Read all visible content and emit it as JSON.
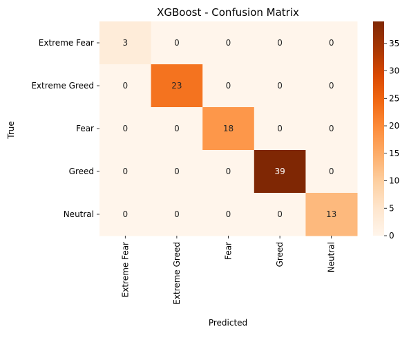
{
  "chart_data": {
    "type": "heatmap",
    "title": "XGBoost - Confusion Matrix",
    "xlabel": "Predicted",
    "ylabel": "True",
    "x_categories": [
      "Extreme Fear",
      "Extreme Greed",
      "Fear",
      "Greed",
      "Neutral"
    ],
    "y_categories": [
      "Extreme Fear",
      "Extreme Greed",
      "Fear",
      "Greed",
      "Neutral"
    ],
    "values": [
      [
        3,
        0,
        0,
        0,
        0
      ],
      [
        0,
        23,
        0,
        0,
        0
      ],
      [
        0,
        0,
        18,
        0,
        0
      ],
      [
        0,
        0,
        0,
        39,
        0
      ],
      [
        0,
        0,
        0,
        0,
        13
      ]
    ],
    "colormap": "Oranges",
    "colorbar": {
      "min": 0,
      "max": 39,
      "ticks": [
        0,
        5,
        10,
        15,
        20,
        25,
        30,
        35
      ]
    },
    "annotations": true,
    "grid": false
  }
}
